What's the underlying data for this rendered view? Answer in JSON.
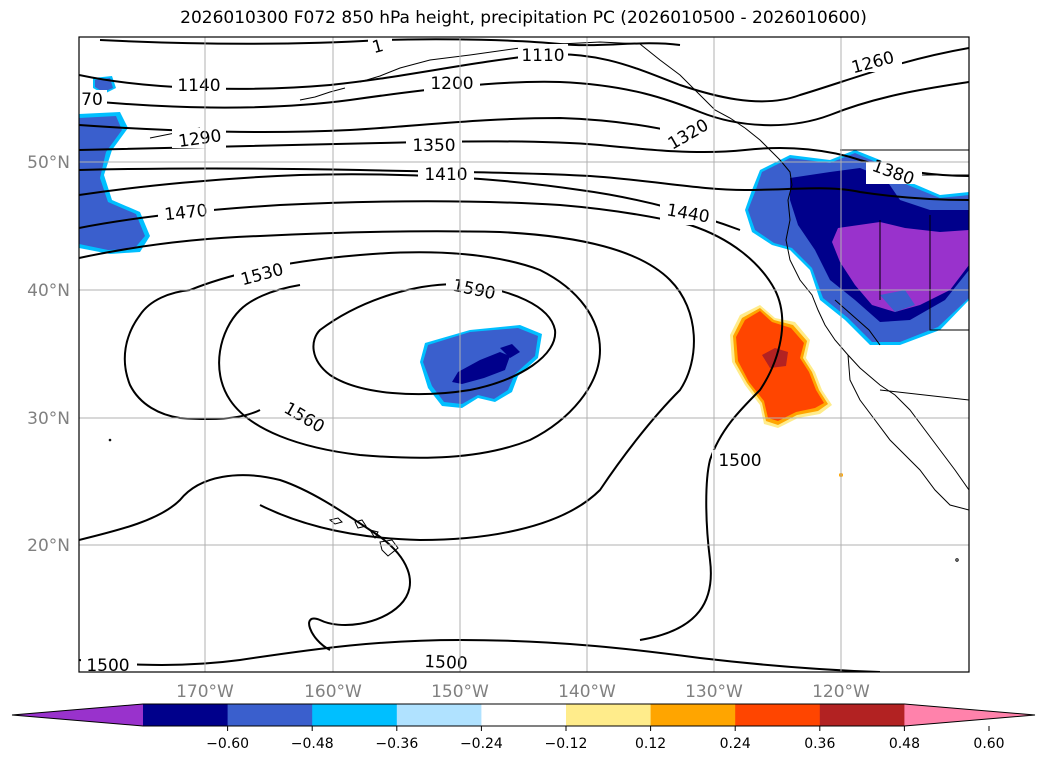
{
  "title": "2026010300 F072 850 hPa height, precipitation PC (2026010500 - 2026010600)",
  "map": {
    "lat_labels": [
      "50°N",
      "40°N",
      "30°N",
      "20°N"
    ],
    "lon_labels": [
      "170°W",
      "160°W",
      "150°W",
      "140°W",
      "130°W",
      "120°W"
    ],
    "grid": true
  },
  "contours": {
    "field": "850 hPa height",
    "labels": [
      "1110",
      "1140",
      "1200",
      "1260",
      "1290",
      "1320",
      "1350",
      "1380",
      "1410",
      "1440",
      "1470",
      "1500",
      "1530",
      "1560",
      "1590",
      "1500",
      "1500",
      "70",
      "1"
    ]
  },
  "colorbar": {
    "ticks": [
      "−0.60",
      "−0.48",
      "−0.36",
      "−0.24",
      "−0.12",
      "0.12",
      "0.24",
      "0.36",
      "0.48",
      "0.60"
    ],
    "colors": [
      "#9932cc",
      "#00008b",
      "#3a5fcd",
      "#00bfff",
      "#b0e2ff",
      "#ffffff",
      "#ffec8b",
      "#ffa500",
      "#ff4500",
      "#b22222",
      "#ff82ab"
    ]
  }
}
